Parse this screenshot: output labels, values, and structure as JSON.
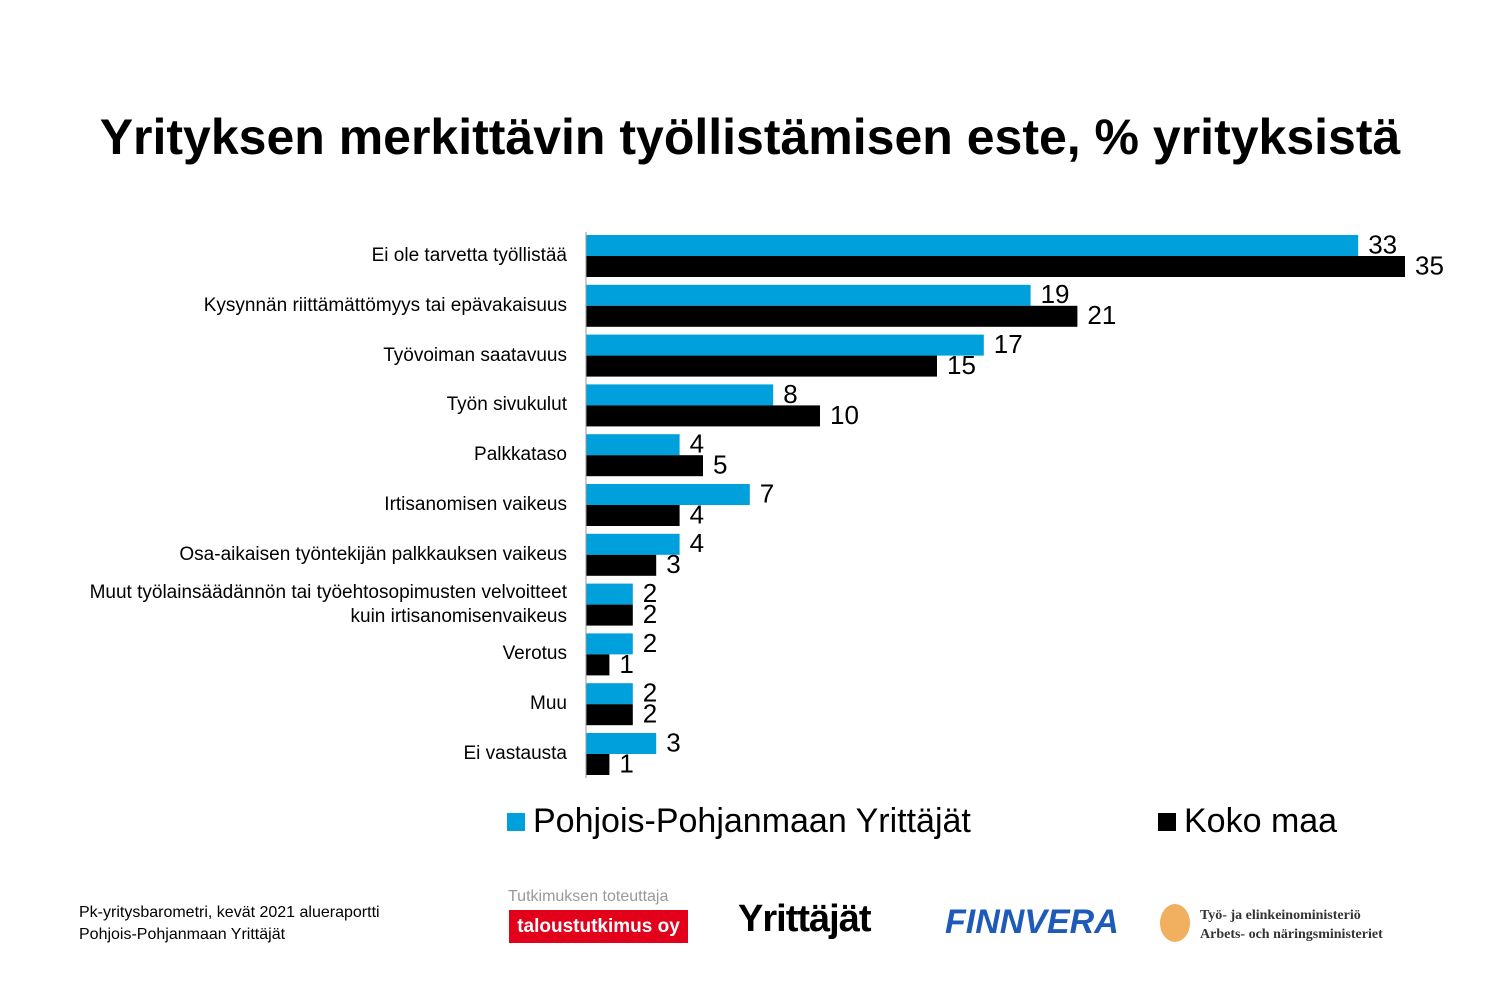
{
  "chart_data": {
    "type": "bar",
    "orientation": "horizontal",
    "title": "Yrityksen merkittävin työllistämisen este, % yrityksistä",
    "categories": [
      "Ei ole tarvetta työllistää",
      "Kysynnän riittämättömyys tai epävakaisuus",
      "Työvoiman saatavuus",
      "Työn sivukulut",
      "Palkkataso",
      "Irtisanomisen vaikeus",
      "Osa-aikaisen työntekijän palkkauksen vaikeus",
      "Muut työlainsäädännön tai työehtosopimusten velvoitteet\nkuin irtisanomisenvaikeus",
      "Verotus",
      "Muu",
      "Ei vastausta"
    ],
    "series": [
      {
        "name": "Pohjois-Pohjanmaan Yrittäjät",
        "color": "#00a0dc",
        "values": [
          33,
          19,
          17,
          8,
          4,
          7,
          4,
          2,
          2,
          2,
          3
        ]
      },
      {
        "name": "Koko maa",
        "color": "#000000",
        "values": [
          35,
          21,
          15,
          10,
          5,
          4,
          3,
          2,
          1,
          2,
          1
        ]
      }
    ],
    "legend": "bottom"
  },
  "footer": {
    "source": [
      "Pk-yritysbarometri, kevät 2021 alueraportti",
      "Pohjois-Pohjanmaan Yrittäjät"
    ],
    "producer_caption": "Tutkimuksen toteuttaja",
    "logos": [
      "taloustutkimus oy",
      "Yrittäjät",
      "FINNVERA",
      "Työ- ja elinkeinoministeriö",
      "Arbets- och näringsministeriet"
    ]
  }
}
